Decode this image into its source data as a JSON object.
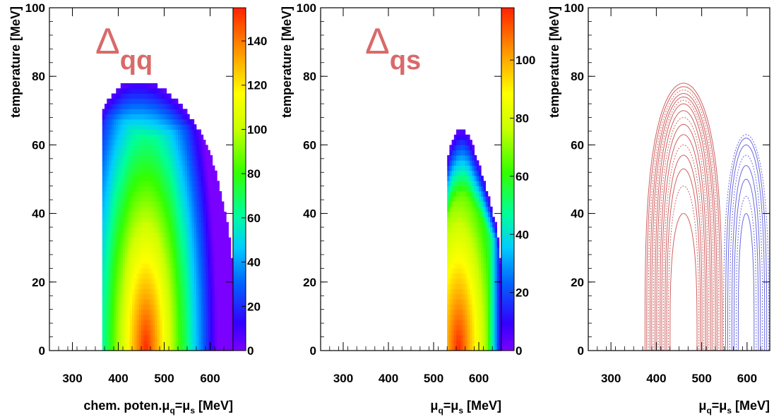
{
  "chart_data": [
    {
      "type": "heatmap",
      "annotation": {
        "symbol": "Δ",
        "sub": "qq",
        "color": "#d96a6a"
      },
      "xlabel": {
        "pre": "chem. poten.",
        "mu_q": "μ",
        "sub_q": "q",
        "eq": "=",
        "mu_s": "μ",
        "sub_s": "s",
        "unit": " [MeV]"
      },
      "ylabel": "temperature [MeV]",
      "xlim": [
        250,
        650
      ],
      "ylim": [
        0,
        100
      ],
      "x_ticks": [
        "300",
        "400",
        "500",
        "600"
      ],
      "y_ticks": [
        "0",
        "20",
        "40",
        "60",
        "80",
        "100"
      ],
      "colorbar": {
        "range": [
          0,
          155
        ],
        "ticks": [
          "0",
          "20",
          "40",
          "60",
          "80",
          "100",
          "120",
          "140"
        ]
      },
      "region": {
        "top": [
          [
            363,
            67
          ],
          [
            370,
            71
          ],
          [
            380,
            73
          ],
          [
            395,
            75
          ],
          [
            410,
            77
          ],
          [
            430,
            78
          ],
          [
            455,
            78
          ],
          [
            480,
            77
          ],
          [
            505,
            75
          ],
          [
            530,
            72
          ],
          [
            555,
            68
          ],
          [
            580,
            63
          ],
          [
            605,
            55
          ],
          [
            625,
            45
          ],
          [
            640,
            35
          ],
          [
            648,
            25
          ],
          [
            650,
            0
          ]
        ],
        "inner_left": [
          [
            365,
            0
          ],
          [
            365,
            40
          ],
          [
            368,
            55
          ],
          [
            363,
            67
          ]
        ],
        "right_edge": 650,
        "baseline_x0": 363
      },
      "peak": {
        "x": 460,
        "y": 0,
        "value": 152
      }
    },
    {
      "type": "heatmap",
      "annotation": {
        "symbol": "Δ",
        "sub": "qs",
        "color": "#d96a6a"
      },
      "xlabel": {
        "pre": "",
        "mu_q": "μ",
        "sub_q": "q",
        "eq": "=",
        "mu_s": "μ",
        "sub_s": "s",
        "unit": " [MeV]"
      },
      "ylabel": "temperature [MeV]",
      "xlim": [
        250,
        650
      ],
      "ylim": [
        0,
        100
      ],
      "x_ticks": [
        "300",
        "400",
        "500",
        "600"
      ],
      "y_ticks": [
        "0",
        "20",
        "40",
        "60",
        "80",
        "100"
      ],
      "colorbar": {
        "range": [
          0,
          118
        ],
        "ticks": [
          "0",
          "20",
          "40",
          "60",
          "80",
          "100"
        ]
      },
      "region": {
        "top": [
          [
            530,
            55
          ],
          [
            540,
            60
          ],
          [
            552,
            63
          ],
          [
            565,
            64
          ],
          [
            578,
            62
          ],
          [
            592,
            57
          ],
          [
            610,
            50
          ],
          [
            625,
            43
          ],
          [
            640,
            35
          ],
          [
            648,
            25
          ],
          [
            650,
            0
          ]
        ],
        "inner_left": [
          [
            530,
            0
          ],
          [
            530,
            55
          ]
        ],
        "right_edge": 650,
        "baseline_x0": 530
      },
      "peak": {
        "x": 555,
        "y": 0,
        "value": 115
      }
    },
    {
      "type": "line",
      "annotation": null,
      "xlabel": {
        "pre": "",
        "mu_q": "μ",
        "sub_q": "q",
        "eq": "=",
        "mu_s": "μ",
        "sub_s": "s",
        "unit": " [MeV]"
      },
      "ylabel": "temperature [MeV]",
      "xlim": [
        250,
        650
      ],
      "ylim": [
        0,
        100
      ],
      "x_ticks": [
        "300",
        "400",
        "500",
        "600"
      ],
      "y_ticks": [
        "0",
        "20",
        "40",
        "60",
        "80",
        "100"
      ],
      "series": [
        {
          "color": "#d06060",
          "center": 460,
          "xr": [
            375,
            650
          ],
          "top": [
            40,
            48,
            53,
            57,
            60,
            63,
            66,
            68,
            70,
            72,
            73,
            74,
            75,
            76,
            77,
            78
          ]
        },
        {
          "color": "#6a6ae0",
          "center": 598,
          "xr": [
            548,
            650
          ],
          "top": [
            40,
            45,
            50,
            54,
            57,
            60,
            62,
            63
          ]
        }
      ]
    }
  ]
}
